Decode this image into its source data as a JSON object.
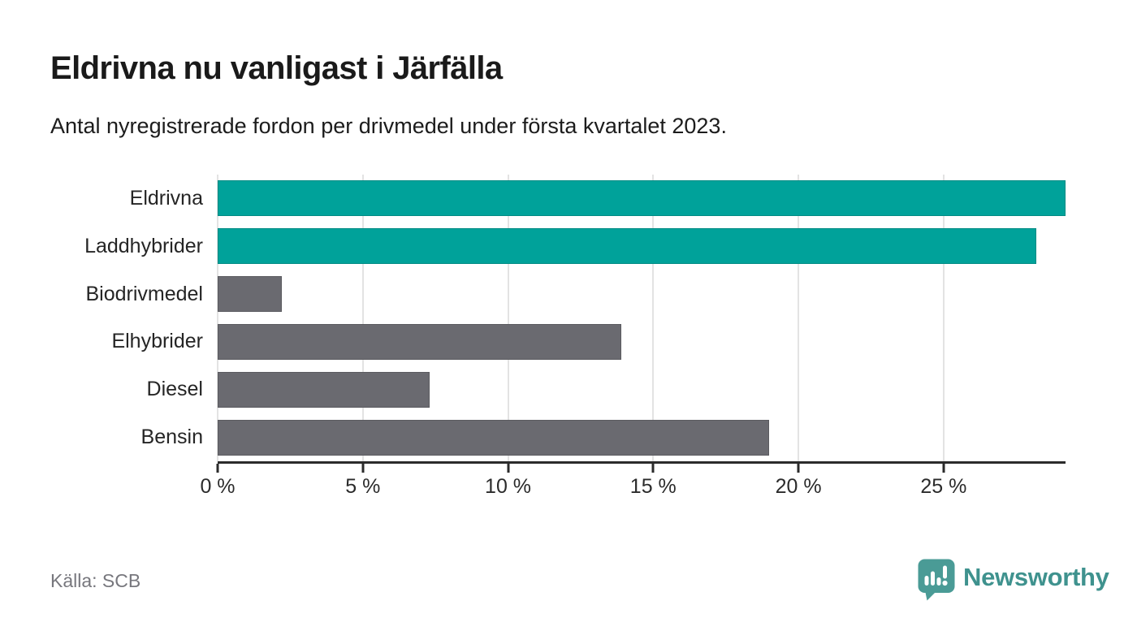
{
  "header": {
    "title": "Eldrivna nu vanligast i Järfälla",
    "subtitle": "Antal nyregistrerade fordon per drivmedel under första kvartalet 2023."
  },
  "chart_data": {
    "type": "bar",
    "orientation": "horizontal",
    "title": "Eldrivna nu vanligast i Järfälla",
    "subtitle": "Antal nyregistrerade fordon per drivmedel under första kvartalet 2023.",
    "categories": [
      "Eldrivna",
      "Laddhybrider",
      "Biodrivmedel",
      "Elhybrider",
      "Diesel",
      "Bensin"
    ],
    "values": [
      29.2,
      28.2,
      2.2,
      13.9,
      7.3,
      19.0
    ],
    "unit": "%",
    "series_colors": [
      "#00a29a",
      "#00a29a",
      "#6a6a70",
      "#6a6a70",
      "#6a6a70",
      "#6a6a70"
    ],
    "xlim": [
      0,
      29.2
    ],
    "x_ticks": [
      0,
      5,
      10,
      15,
      20,
      25
    ],
    "x_tick_labels": [
      "0 %",
      "5 %",
      "10 %",
      "15 %",
      "20 %",
      "25 %"
    ],
    "grid": true,
    "legend": false,
    "source": "Källa: SCB"
  },
  "footer": {
    "source": "Källa: SCB",
    "brand": "Newsworthy"
  },
  "colors": {
    "accent_teal": "#00a29a",
    "bar_gray": "#6a6a70",
    "brand_teal_icon": "#4a9b96",
    "brand_teal_text": "#3f928e",
    "grid": "#e3e3e3",
    "axis": "#2b2b2b",
    "text": "#1a1a1a",
    "muted": "#77777d"
  }
}
